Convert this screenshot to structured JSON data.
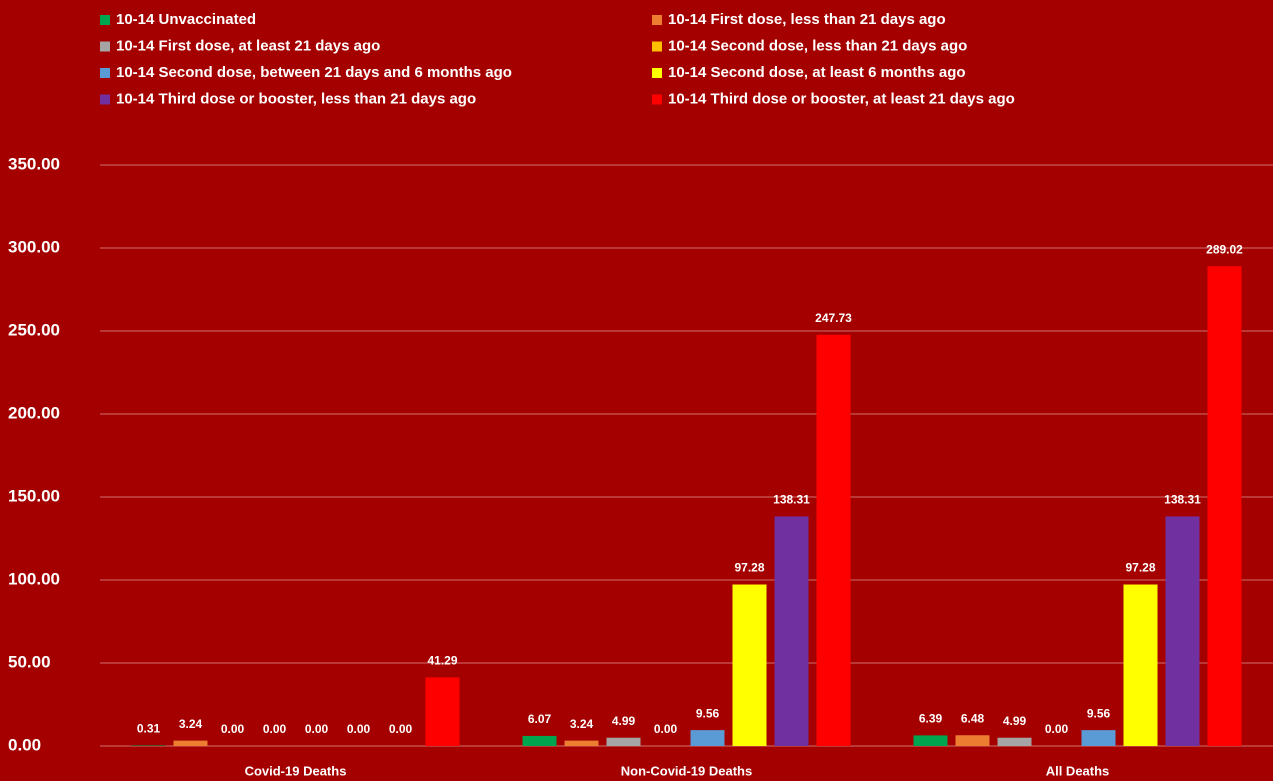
{
  "chart_data": {
    "type": "bar",
    "categories": [
      "Covid-19 Deaths",
      "Non-Covid-19 Deaths",
      "All Deaths"
    ],
    "series": [
      {
        "name": "10-14 Unvaccinated",
        "color": "#00a550",
        "values": [
          0.31,
          6.07,
          6.39
        ],
        "value_labels": [
          "0.31",
          "6.07",
          "6.39"
        ]
      },
      {
        "name": "10-14 First dose, less than 21 days ago",
        "color": "#ed7d31",
        "values": [
          3.24,
          3.24,
          6.48
        ],
        "value_labels": [
          "3.24",
          "3.24",
          "6.48"
        ]
      },
      {
        "name": "10-14 First dose, at least 21 days ago",
        "color": "#a5a5a5",
        "values": [
          0,
          4.99,
          4.99
        ],
        "value_labels": [
          "0.00",
          "4.99",
          "4.99"
        ]
      },
      {
        "name": "10-14 Second dose, less than 21 days ago",
        "color": "#ffc000",
        "values": [
          0,
          0,
          0
        ],
        "value_labels": [
          "0.00",
          "0.00",
          "0.00"
        ]
      },
      {
        "name": "10-14 Second dose, between 21 days and 6 months ago",
        "color": "#5b9bd5",
        "values": [
          0,
          9.56,
          9.56
        ],
        "value_labels": [
          "0.00",
          "9.56",
          "9.56"
        ]
      },
      {
        "name": "10-14 Second dose, at least 6 months ago",
        "color": "#ffff00",
        "values": [
          0,
          97.28,
          97.28
        ],
        "value_labels": [
          "0.00",
          "97.28",
          "97.28"
        ]
      },
      {
        "name": "10-14 Third dose or booster, less than 21 days ago",
        "color": "#7030a0",
        "values": [
          0,
          138.31,
          138.31
        ],
        "value_labels": [
          "0.00",
          "138.31",
          "138.31"
        ]
      },
      {
        "name": "10-14 Third dose or booster, at least 21 days ago",
        "color": "#ff0000",
        "values": [
          41.29,
          247.73,
          289.02
        ],
        "value_labels": [
          "41.29",
          "247.73",
          "289.02"
        ]
      }
    ],
    "ylim": [
      0,
      350
    ],
    "yticks": [
      {
        "value": 0,
        "label": "0.00"
      },
      {
        "value": 50,
        "label": "50.00"
      },
      {
        "value": 100,
        "label": "100.00"
      },
      {
        "value": 150,
        "label": "150.00"
      },
      {
        "value": 200,
        "label": "200.00"
      },
      {
        "value": 250,
        "label": "250.00"
      },
      {
        "value": 300,
        "label": "300.00"
      },
      {
        "value": 350,
        "label": "350.00"
      }
    ],
    "grid": true
  }
}
